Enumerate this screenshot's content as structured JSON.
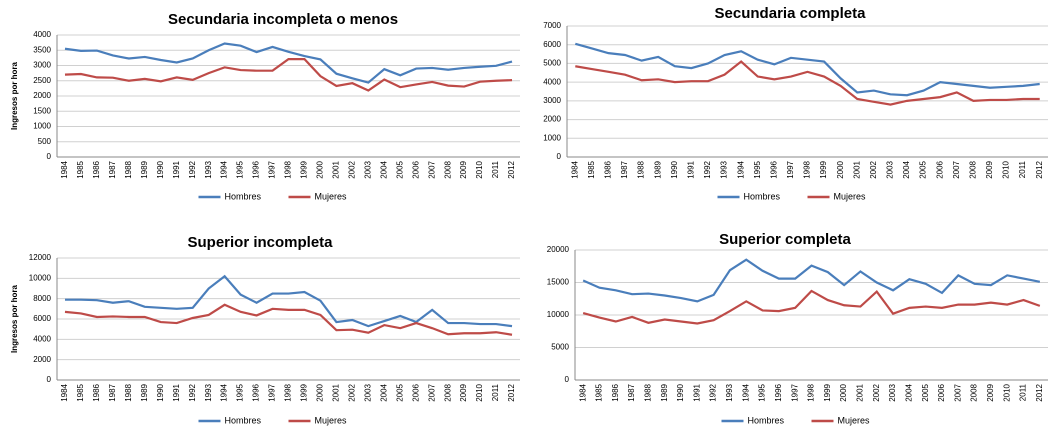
{
  "chart_data": [
    {
      "type": "line",
      "title": "Secundaria incompleta o menos",
      "y_label": "Ingresos por hora",
      "categories": [
        "1984",
        "1985",
        "1986",
        "1987",
        "1988",
        "1989",
        "1990",
        "1991",
        "1992",
        "1993",
        "1994",
        "1995",
        "1996",
        "1997",
        "1998",
        "1999",
        "2000",
        "2001",
        "2002",
        "2003",
        "2004",
        "2005",
        "2006",
        "2007",
        "2008",
        "2009",
        "2010",
        "2011",
        "2012"
      ],
      "series": [
        {
          "name": "Hombres",
          "color": "#4a7ebb",
          "values": [
            3550,
            3480,
            3490,
            3330,
            3230,
            3280,
            3180,
            3100,
            3230,
            3500,
            3720,
            3650,
            3440,
            3610,
            3450,
            3310,
            3200,
            2730,
            2580,
            2440,
            2880,
            2680,
            2900,
            2920,
            2860,
            2920,
            2960,
            2990,
            3130
          ]
        },
        {
          "name": "Mujeres",
          "color": "#be4b48",
          "values": [
            2700,
            2720,
            2610,
            2600,
            2500,
            2560,
            2480,
            2610,
            2530,
            2750,
            2940,
            2850,
            2830,
            2830,
            3210,
            3210,
            2650,
            2330,
            2420,
            2180,
            2540,
            2290,
            2380,
            2460,
            2340,
            2310,
            2470,
            2500,
            2520
          ]
        }
      ],
      "ylim": [
        0,
        4000
      ],
      "yticks": [
        0,
        500,
        1000,
        1500,
        2000,
        2500,
        3000,
        3500,
        4000
      ],
      "grid": true,
      "legend": "bottom"
    },
    {
      "type": "line",
      "title": "Secundaria completa",
      "categories": [
        "1984",
        "1985",
        "1986",
        "1987",
        "1988",
        "1989",
        "1990",
        "1991",
        "1992",
        "1993",
        "1994",
        "1995",
        "1996",
        "1997",
        "1998",
        "1999",
        "2000",
        "2001",
        "2002",
        "2003",
        "2004",
        "2005",
        "2006",
        "2007",
        "2008",
        "2009",
        "2010",
        "2011",
        "2012"
      ],
      "series": [
        {
          "name": "Hombres",
          "color": "#4a7ebb",
          "values": [
            6050,
            5800,
            5550,
            5450,
            5150,
            5350,
            4850,
            4750,
            5000,
            5450,
            5650,
            5200,
            4950,
            5300,
            5200,
            5100,
            4200,
            3450,
            3550,
            3350,
            3300,
            3550,
            4000,
            3900,
            3800,
            3700,
            3750,
            3800,
            3900
          ]
        },
        {
          "name": "Mujeres",
          "color": "#be4b48",
          "values": [
            4850,
            4700,
            4550,
            4400,
            4100,
            4150,
            4000,
            4050,
            4050,
            4400,
            5100,
            4300,
            4150,
            4300,
            4550,
            4300,
            3800,
            3100,
            2950,
            2800,
            3000,
            3100,
            3200,
            3450,
            3000,
            3050,
            3050,
            3100,
            3100
          ]
        }
      ],
      "ylim": [
        0,
        7000
      ],
      "yticks": [
        0,
        1000,
        2000,
        3000,
        4000,
        5000,
        6000,
        7000
      ],
      "grid": true,
      "legend": "bottom"
    },
    {
      "type": "line",
      "title": "Superior incompleta",
      "y_label": "Ingresos por hora",
      "categories": [
        "1984",
        "1985",
        "1986",
        "1987",
        "1988",
        "1989",
        "1990",
        "1991",
        "1992",
        "1993",
        "1994",
        "1995",
        "1996",
        "1997",
        "1998",
        "1999",
        "2000",
        "2001",
        "2002",
        "2003",
        "2004",
        "2005",
        "2006",
        "2007",
        "2008",
        "2009",
        "2010",
        "2011",
        "2012"
      ],
      "series": [
        {
          "name": "Hombres",
          "color": "#4a7ebb",
          "values": [
            7900,
            7900,
            7850,
            7600,
            7750,
            7200,
            7100,
            7000,
            7100,
            9000,
            10200,
            8400,
            7600,
            8500,
            8500,
            8650,
            7800,
            5700,
            5900,
            5300,
            5800,
            6300,
            5700,
            6900,
            5600,
            5600,
            5500,
            5500,
            5300
          ]
        },
        {
          "name": "Mujeres",
          "color": "#be4b48",
          "values": [
            6700,
            6550,
            6200,
            6250,
            6200,
            6200,
            5700,
            5600,
            6100,
            6400,
            7400,
            6700,
            6350,
            7000,
            6900,
            6900,
            6400,
            4900,
            4950,
            4650,
            5400,
            5100,
            5600,
            5100,
            4500,
            4600,
            4600,
            4700,
            4450
          ]
        }
      ],
      "ylim": [
        0,
        12000
      ],
      "yticks": [
        0,
        2000,
        4000,
        6000,
        8000,
        10000,
        12000
      ],
      "grid": true,
      "legend": "bottom"
    },
    {
      "type": "line",
      "title": "Superior completa",
      "categories": [
        "1984",
        "1985",
        "1986",
        "1987",
        "1988",
        "1989",
        "1990",
        "1991",
        "1992",
        "1993",
        "1994",
        "1995",
        "1996",
        "1997",
        "1998",
        "1999",
        "2000",
        "2001",
        "2002",
        "2003",
        "2004",
        "2005",
        "2006",
        "2007",
        "2008",
        "2009",
        "2010",
        "2011",
        "2012"
      ],
      "series": [
        {
          "name": "Hombres",
          "color": "#4a7ebb",
          "values": [
            15300,
            14200,
            13800,
            13200,
            13300,
            13000,
            12600,
            12100,
            13100,
            16900,
            18500,
            16800,
            15600,
            15600,
            17600,
            16600,
            14600,
            16700,
            15000,
            13800,
            15500,
            14800,
            13400,
            16100,
            14800,
            14600,
            16100,
            15600,
            15100
          ]
        },
        {
          "name": "Mujeres",
          "color": "#be4b48",
          "values": [
            10300,
            9600,
            9000,
            9700,
            8800,
            9300,
            9000,
            8700,
            9200,
            10600,
            12100,
            10700,
            10600,
            11100,
            13700,
            12300,
            11500,
            11300,
            13600,
            10200,
            11100,
            11300,
            11100,
            11600,
            11600,
            11900,
            11600,
            12300,
            11400
          ]
        }
      ],
      "ylim": [
        0,
        20000
      ],
      "yticks": [
        0,
        5000,
        10000,
        15000,
        20000
      ],
      "grid": true,
      "legend": "bottom"
    }
  ]
}
